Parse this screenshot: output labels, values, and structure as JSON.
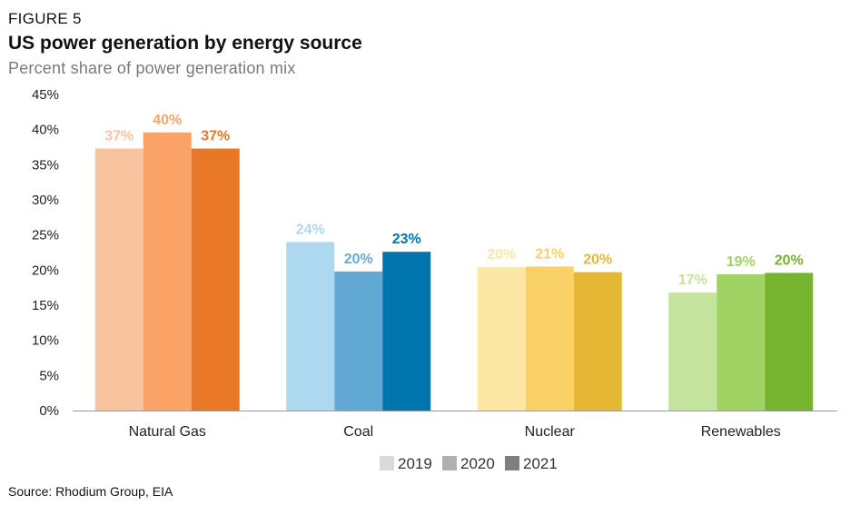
{
  "figure_label": "FIGURE 5",
  "source": "Source: Rhodium Group, EIA",
  "chart_data": {
    "type": "bar",
    "title": "US power generation by energy source",
    "subtitle": "Percent share of power generation mix",
    "categories": [
      "Natural Gas",
      "Coal",
      "Nuclear",
      "Renewables"
    ],
    "series": [
      {
        "name": "2019",
        "values": [
          37.3,
          24.0,
          20.4,
          16.8
        ]
      },
      {
        "name": "2020",
        "values": [
          39.6,
          19.8,
          20.5,
          19.4
        ]
      },
      {
        "name": "2021",
        "values": [
          37.3,
          22.6,
          19.7,
          19.6
        ]
      }
    ],
    "data_labels": [
      [
        "37%",
        "40%",
        "37%"
      ],
      [
        "24%",
        "20%",
        "23%"
      ],
      [
        "20%",
        "21%",
        "20%"
      ],
      [
        "17%",
        "19%",
        "20%"
      ]
    ],
    "bar_colors": [
      [
        "#f7c49f",
        "#fba267",
        "#e87826"
      ],
      [
        "#add8ef",
        "#63a9d6",
        "#0075ad"
      ],
      [
        "#fce6a4",
        "#f9d166",
        "#e6b635"
      ],
      [
        "#c4e39c",
        "#a0d363",
        "#76b32f"
      ]
    ],
    "label_colors": [
      [
        "#f7c49f",
        "#fba267",
        "#e87826"
      ],
      [
        "#add8ef",
        "#63a9d6",
        "#0075ad"
      ],
      [
        "#fce6a4",
        "#f9d166",
        "#e6b635"
      ],
      [
        "#c4e39c",
        "#a0d363",
        "#76b32f"
      ]
    ],
    "legend": {
      "placement": "bottom-right",
      "items": [
        {
          "label": "2019",
          "color": "#d9d9d9"
        },
        {
          "label": "2020",
          "color": "#b0b0b0"
        },
        {
          "label": "2021",
          "color": "#7f7f7f"
        }
      ]
    },
    "ylim": [
      0,
      45
    ],
    "yticks": [
      0,
      5,
      10,
      15,
      20,
      25,
      30,
      35,
      40,
      45
    ],
    "ytick_labels": [
      "0%",
      "5%",
      "10%",
      "15%",
      "20%",
      "25%",
      "30%",
      "35%",
      "40%",
      "45%"
    ],
    "xlabel": "",
    "ylabel": "",
    "grid": false
  }
}
